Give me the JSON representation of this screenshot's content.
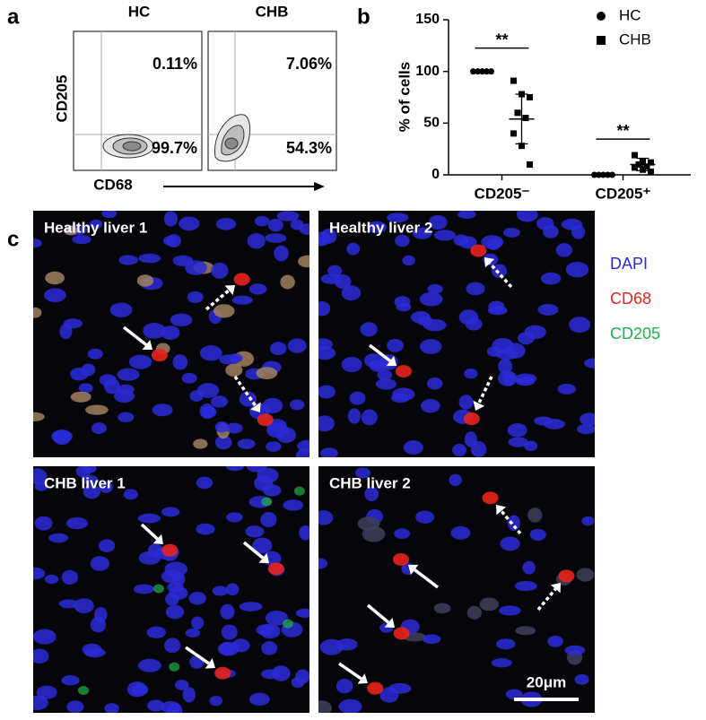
{
  "chart_data": {
    "type": "scatter",
    "panel_label": "b",
    "y_label": "% of cells",
    "categories": [
      "CD205⁻",
      "CD205⁺"
    ],
    "ylim": [
      0,
      150
    ],
    "yticks": [
      0,
      50,
      100,
      150
    ],
    "series": [
      {
        "name": "HC",
        "marker": "circle",
        "color": "#000000",
        "values": [
          [
            100,
            100,
            100,
            100,
            100
          ],
          [
            0,
            0,
            0,
            0,
            0
          ]
        ]
      },
      {
        "name": "CHB",
        "marker": "square",
        "color": "#000000",
        "values": [
          [
            91,
            78,
            75,
            60,
            55,
            40,
            28,
            10
          ],
          [
            19,
            13,
            12,
            10,
            8,
            7,
            5,
            3
          ]
        ],
        "mean": [
          54,
          10
        ],
        "sd": [
          24,
          6
        ]
      }
    ],
    "annotations": [
      "**",
      "**"
    ],
    "legend": "top-right"
  },
  "flow": {
    "panel_label": "a",
    "y_label": "CD205",
    "x_label": "CD68",
    "plots": [
      {
        "title": "HC",
        "upper": "0.11%",
        "lower": "99.7%"
      },
      {
        "title": "CHB",
        "upper": "7.06%",
        "lower": "54.3%"
      }
    ]
  },
  "imaging": {
    "panel_label": "c",
    "tiles": [
      {
        "title": "Healthy liver 1"
      },
      {
        "title": "Healthy liver 2"
      },
      {
        "title": "CHB liver 1"
      },
      {
        "title": "CHB liver 2"
      }
    ],
    "legend": [
      {
        "label": "DAPI",
        "color": "#2b2bd8"
      },
      {
        "label": "CD68",
        "color": "#e8241c"
      },
      {
        "label": "CD205",
        "color": "#21b04a"
      }
    ],
    "scale_bar": "20μm"
  }
}
